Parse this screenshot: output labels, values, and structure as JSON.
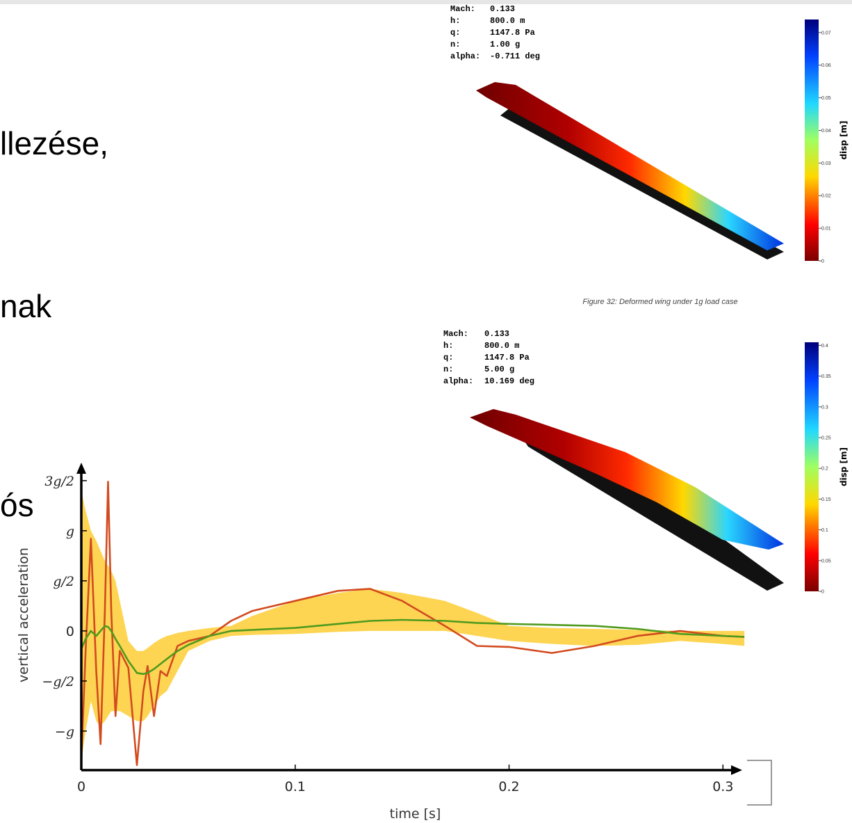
{
  "slide_text": [
    "llezése,",
    "nak",
    "ós"
  ],
  "figures": [
    {
      "info": [
        [
          "Mach:",
          "0.133"
        ],
        [
          "h:",
          "800.0 m"
        ],
        [
          "q:",
          "1147.8 Pa"
        ],
        [
          "n:",
          "1.00 g"
        ],
        [
          "alpha:",
          "-0.711 deg"
        ]
      ],
      "colorbar": {
        "label": "disp [m]",
        "lim": [
          0,
          0.074
        ],
        "ticks": [
          0,
          0.01,
          0.02,
          0.03,
          0.04,
          0.05,
          0.06,
          0.07
        ]
      },
      "caption": "Figure 32: Deformed wing under 1g load case"
    },
    {
      "info": [
        [
          "Mach:",
          "0.133"
        ],
        [
          "h:",
          "800.0 m"
        ],
        [
          "q:",
          "1147.8 Pa"
        ],
        [
          "n:",
          "5.00 g"
        ],
        [
          "alpha:",
          "10.169 deg"
        ]
      ],
      "colorbar": {
        "label": "disp [m]",
        "lim": [
          0,
          0.405
        ],
        "ticks": [
          0,
          0.05,
          0.1,
          0.15,
          0.2,
          0.25,
          0.3,
          0.35,
          0.4
        ]
      }
    }
  ],
  "chart_data": {
    "type": "line",
    "xlabel": "time [s]",
    "ylabel": "vertical acceleration",
    "xlim": [
      0,
      0.309
    ],
    "ylim": [
      -1.39,
      1.68
    ],
    "xticks": [
      0,
      0.1,
      0.2,
      0.3
    ],
    "yticks": [
      {
        "value": -1,
        "label": "−g"
      },
      {
        "value": -0.5,
        "label": "−g/2"
      },
      0,
      {
        "value": 0.5,
        "label": "g/2"
      },
      {
        "value": 1,
        "label": "g"
      },
      {
        "value": 1.5,
        "label": "3g/2"
      }
    ],
    "x": [
      0,
      0.002,
      0.0045,
      0.007,
      0.009,
      0.011,
      0.0125,
      0.014,
      0.016,
      0.018,
      0.022,
      0.026,
      0.029,
      0.031,
      0.034,
      0.037,
      0.04,
      0.045,
      0.05,
      0.06,
      0.07,
      0.08,
      0.1,
      0.12,
      0.135,
      0.15,
      0.17,
      0.185,
      0.2,
      0.22,
      0.24,
      0.26,
      0.28,
      0.3,
      0.31
    ],
    "band": {
      "color": "#fdd040",
      "upper": [
        1.4,
        1.2,
        1.0,
        0.9,
        0.8,
        0.7,
        0.65,
        0.6,
        0.5,
        0.3,
        -0.1,
        -0.2,
        -0.2,
        -0.17,
        -0.12,
        -0.08,
        -0.05,
        -0.02,
        0,
        0.03,
        0.05,
        0.15,
        0.3,
        0.38,
        0.42,
        0.38,
        0.3,
        0.18,
        0.05,
        0.03,
        0.02,
        0.01,
        0,
        0,
        0
      ],
      "lower": [
        -1.3,
        -1.0,
        -0.7,
        -0.9,
        -0.95,
        -0.9,
        -0.85,
        -0.8,
        -0.8,
        -0.8,
        -0.85,
        -0.9,
        -0.9,
        -0.85,
        -0.75,
        -0.65,
        -0.6,
        -0.4,
        -0.2,
        -0.1,
        -0.05,
        -0.04,
        -0.03,
        -0.01,
        0,
        0,
        0,
        -0.05,
        -0.1,
        -0.13,
        -0.15,
        -0.14,
        -0.1,
        -0.13,
        -0.15
      ]
    },
    "series": [
      {
        "color": "#d24a1e",
        "values": [
          -1.3,
          -0.2,
          0.92,
          -0.4,
          -1.13,
          0.2,
          1.49,
          0.2,
          -0.85,
          -0.2,
          -0.37,
          -1.34,
          -0.6,
          -0.35,
          -0.85,
          -0.4,
          -0.45,
          -0.15,
          -0.1,
          -0.05,
          0.1,
          0.2,
          0.3,
          0.4,
          0.42,
          0.3,
          0.05,
          -0.15,
          -0.16,
          -0.22,
          -0.15,
          -0.05,
          0,
          -0.05,
          -0.06
        ]
      },
      {
        "color": "#4f9a1e",
        "values": [
          -0.18,
          -0.08,
          0,
          -0.05,
          0,
          0.05,
          0.04,
          0,
          -0.08,
          -0.15,
          -0.3,
          -0.42,
          -0.43,
          -0.42,
          -0.38,
          -0.33,
          -0.28,
          -0.2,
          -0.14,
          -0.05,
          0,
          0.01,
          0.03,
          0.07,
          0.1,
          0.11,
          0.1,
          0.08,
          0.07,
          0.06,
          0.05,
          0.02,
          -0.03,
          -0.05,
          -0.06
        ]
      }
    ]
  }
}
